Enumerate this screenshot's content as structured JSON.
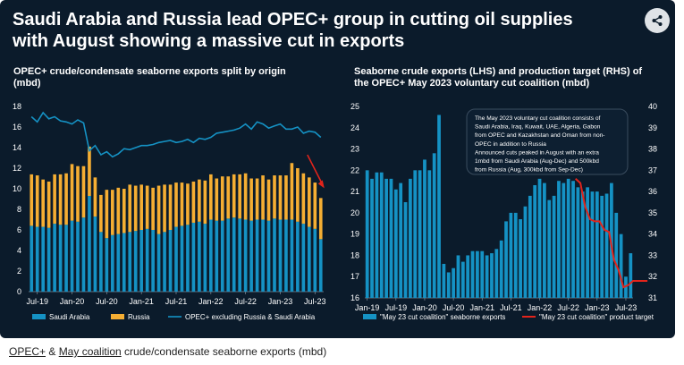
{
  "title": {
    "line1": "Saudi Arabia and Russia lead OPEC+ group in cutting oil supplies",
    "line2": "with August showing a massive cut in exports"
  },
  "share_icon": "share-icon",
  "caption": {
    "link1": "OPEC+",
    "sep": " & ",
    "link2": "May coalition",
    "rest": " crude/condensate seaborne exports (mbd)"
  },
  "chart_data": [
    {
      "type": "bar",
      "title": "OPEC+ crude/condensate seaborne exports split by origin (mbd)",
      "title_lines": [
        "OPEC+ crude/condensate seaborne exports split by origin",
        "(mbd)"
      ],
      "stacked": true,
      "x_ticks": [
        "Jul-19",
        "Jan-20",
        "Jul-20",
        "Jan-21",
        "Jul-21",
        "Jan-22",
        "Jul-22",
        "Jan-23",
        "Jul-23"
      ],
      "ylim": [
        0,
        18
      ],
      "y_ticks": [
        0,
        2,
        4,
        6,
        8,
        10,
        12,
        14,
        16,
        18
      ],
      "grid": false,
      "legend_position": "bottom",
      "months": [
        "2019-06",
        "2019-07",
        "2019-08",
        "2019-09",
        "2019-10",
        "2019-11",
        "2019-12",
        "2020-01",
        "2020-02",
        "2020-03",
        "2020-04",
        "2020-05",
        "2020-06",
        "2020-07",
        "2020-08",
        "2020-09",
        "2020-10",
        "2020-11",
        "2020-12",
        "2021-01",
        "2021-02",
        "2021-03",
        "2021-04",
        "2021-05",
        "2021-06",
        "2021-07",
        "2021-08",
        "2021-09",
        "2021-10",
        "2021-11",
        "2021-12",
        "2022-01",
        "2022-02",
        "2022-03",
        "2022-04",
        "2022-05",
        "2022-06",
        "2022-07",
        "2022-08",
        "2022-09",
        "2022-10",
        "2022-11",
        "2022-12",
        "2023-01",
        "2023-02",
        "2023-03",
        "2023-04",
        "2023-05",
        "2023-06",
        "2023-07",
        "2023-08"
      ],
      "series": [
        {
          "name": "Saudi Arabia",
          "color": "#1592c4",
          "values": [
            6.4,
            6.3,
            6.3,
            6.2,
            6.6,
            6.5,
            6.5,
            6.9,
            6.8,
            7.2,
            9.3,
            7.3,
            5.8,
            5.2,
            5.5,
            5.6,
            5.7,
            5.8,
            5.9,
            6.0,
            6.1,
            6.0,
            5.6,
            5.8,
            6.0,
            6.3,
            6.4,
            6.5,
            6.7,
            6.8,
            6.6,
            7.0,
            6.9,
            6.9,
            7.1,
            7.2,
            7.1,
            7.0,
            6.9,
            7.0,
            7.0,
            6.9,
            7.1,
            7.0,
            7.0,
            7.0,
            6.8,
            6.6,
            6.3,
            6.1,
            5.1
          ]
        },
        {
          "name": "Russia",
          "color": "#f5ae33",
          "values": [
            5.0,
            5.0,
            4.6,
            4.5,
            4.8,
            4.9,
            5.0,
            5.5,
            5.4,
            5.0,
            4.8,
            3.8,
            3.6,
            4.7,
            4.4,
            4.5,
            4.3,
            4.6,
            4.4,
            4.4,
            4.2,
            4.1,
            4.7,
            4.6,
            4.4,
            4.3,
            4.2,
            4.0,
            4.0,
            4.1,
            4.2,
            4.4,
            4.1,
            4.3,
            4.1,
            4.2,
            4.3,
            4.5,
            4.1,
            4.0,
            4.3,
            4.0,
            4.2,
            4.3,
            4.3,
            5.5,
            5.2,
            4.9,
            4.8,
            4.5,
            4.0
          ]
        },
        {
          "name": "OPEC+ excluding Russia & Saudi Arabia",
          "color": "#1592c4",
          "type": "line",
          "values": [
            17.0,
            16.5,
            17.4,
            16.8,
            17.0,
            16.6,
            16.5,
            16.3,
            16.7,
            16.4,
            13.7,
            14.2,
            13.3,
            13.6,
            13.1,
            13.4,
            13.9,
            13.8,
            14.0,
            14.2,
            14.2,
            14.3,
            14.5,
            14.6,
            14.7,
            14.5,
            14.6,
            14.8,
            14.5,
            14.9,
            14.8,
            15.0,
            15.4,
            15.5,
            15.6,
            15.7,
            15.9,
            16.3,
            15.8,
            16.5,
            16.3,
            15.9,
            16.1,
            16.3,
            15.8,
            15.8,
            16.0,
            15.4,
            15.6,
            15.5,
            15.0
          ]
        }
      ],
      "annotation": {
        "type": "arrow",
        "color": "#e3241b"
      }
    },
    {
      "type": "bar",
      "title": "Seaborne crude exports (LHS) and production target (RHS) of the OPEC+ May 2023 voluntary cut coalition (mbd)",
      "title_lines": [
        "Seaborne crude exports (LHS) and production target (RHS) of",
        "the OPEC+ May 2023 voluntary cut coalition (mbd)"
      ],
      "x_ticks": [
        "Jan-19",
        "Jul-19",
        "Jan-20",
        "Jul-20",
        "Jan-21",
        "Jul-21",
        "Jan-22",
        "Jul-22",
        "Jan-23",
        "Jul-23"
      ],
      "ylim": [
        16,
        25
      ],
      "y_ticks": [
        16,
        17,
        18,
        19,
        20,
        21,
        22,
        23,
        24,
        25
      ],
      "y2lim": [
        31,
        40
      ],
      "y2_ticks": [
        31,
        32,
        33,
        34,
        35,
        36,
        37,
        38,
        39,
        40
      ],
      "grid": false,
      "legend_position": "bottom",
      "months": [
        "2019-01",
        "2019-02",
        "2019-03",
        "2019-04",
        "2019-05",
        "2019-06",
        "2019-07",
        "2019-08",
        "2019-09",
        "2019-10",
        "2019-11",
        "2019-12",
        "2020-01",
        "2020-02",
        "2020-03",
        "2020-04",
        "2020-05",
        "2020-06",
        "2020-07",
        "2020-08",
        "2020-09",
        "2020-10",
        "2020-11",
        "2020-12",
        "2021-01",
        "2021-02",
        "2021-03",
        "2021-04",
        "2021-05",
        "2021-06",
        "2021-07",
        "2021-08",
        "2021-09",
        "2021-10",
        "2021-11",
        "2021-12",
        "2022-01",
        "2022-02",
        "2022-03",
        "2022-04",
        "2022-05",
        "2022-06",
        "2022-07",
        "2022-08",
        "2022-09",
        "2022-10",
        "2022-11",
        "2022-12",
        "2023-01",
        "2023-02",
        "2023-03",
        "2023-04",
        "2023-05",
        "2023-06",
        "2023-07",
        "2023-08"
      ],
      "series": [
        {
          "name": "\"May 23 cut coalition\" seaborne exports",
          "color": "#1592c4",
          "axis": "left",
          "values": [
            22.0,
            21.6,
            21.9,
            21.9,
            21.6,
            21.6,
            21.1,
            21.4,
            20.5,
            21.6,
            22.0,
            22.0,
            22.5,
            22.0,
            22.8,
            24.6,
            17.6,
            17.2,
            17.4,
            18.0,
            17.7,
            18.0,
            18.2,
            18.2,
            18.2,
            18.0,
            18.1,
            18.3,
            18.7,
            19.6,
            20.0,
            20.0,
            19.7,
            20.3,
            20.8,
            21.3,
            21.6,
            21.4,
            20.6,
            20.8,
            21.5,
            21.4,
            21.6,
            21.5,
            21.2,
            21.0,
            21.2,
            21.0,
            21.0,
            20.8,
            20.9,
            21.4,
            20.0,
            19.0,
            17.0,
            18.1
          ]
        },
        {
          "name": "\"May 23 cut coalition\" product target",
          "color": "#e3241b",
          "type": "line",
          "axis": "right",
          "months": [
            "2022-09",
            "2022-10",
            "2022-11",
            "2022-12",
            "2023-01",
            "2023-02",
            "2023-03",
            "2023-04",
            "2023-05",
            "2023-06",
            "2023-07",
            "2023-08",
            "2023-09",
            "2023-10",
            "2023-11",
            "2023-12"
          ],
          "values": [
            36.6,
            36.4,
            35.3,
            34.7,
            34.6,
            34.6,
            34.2,
            34.1,
            32.8,
            32.3,
            31.5,
            31.6,
            31.8,
            31.8,
            31.8,
            31.8
          ]
        }
      ],
      "annotation": {
        "lines": [
          "The May 2023 voluntary cut coalition consists of",
          "Saudi Arabia, Iraq, Kuwait, UAE, Algeria, Gabon",
          "from OPEC and Kazakhstan and Oman from non-",
          "OPEC in addition to Russia",
          "Announced cuts peaked in August with an extra",
          "1mbd from Saudi Arabia (Aug-Dec) and 500kbd",
          "from Russia (Aug, 300kbd from Sep-Dec)"
        ]
      }
    }
  ]
}
